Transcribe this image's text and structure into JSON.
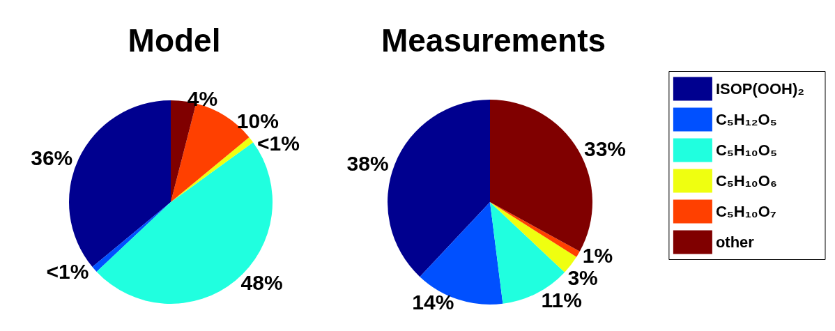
{
  "chart_data": {
    "type": "pie",
    "categories": [
      "ISOP(OOH)₂",
      "C₅H₁₂O₅",
      "C₅H₁₀O₅",
      "C₅H₁₀O₆",
      "C₅H₁₀O₇",
      "other"
    ],
    "legend": "right",
    "series": [
      {
        "name": "Model",
        "values": [
          36,
          1,
          48,
          1,
          10,
          4
        ],
        "value_labels": [
          "36%",
          "<1%",
          "48%",
          "<1%",
          "10%",
          "4%"
        ],
        "colors": [
          "#00008f",
          "#0050ff",
          "#20ffdf",
          "#efff10",
          "#ff4000",
          "#800000"
        ]
      },
      {
        "name": "Measurements",
        "values": [
          38,
          14,
          11,
          3,
          1,
          33
        ],
        "value_labels": [
          "38%",
          "14%",
          "11%",
          "3%",
          "1%",
          "33%"
        ],
        "colors": [
          "#00008f",
          "#0050ff",
          "#20ffdf",
          "#efff10",
          "#ff4000",
          "#800000"
        ]
      }
    ]
  }
}
